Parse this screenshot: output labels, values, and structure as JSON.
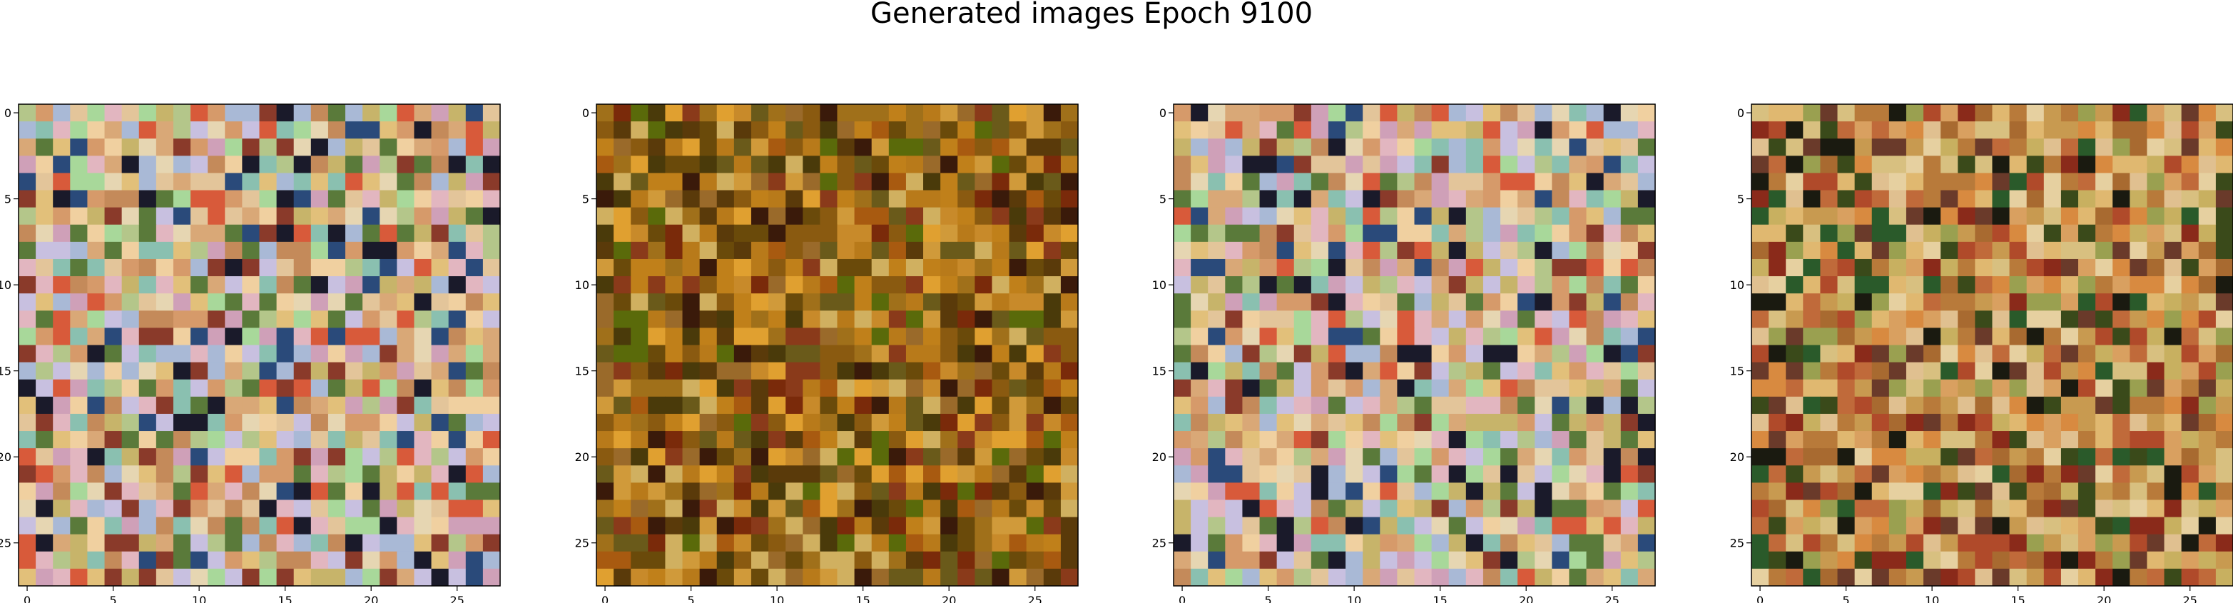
{
  "figure": {
    "title": "Generated images Epoch 9100"
  },
  "chart_data": [
    {
      "type": "heatmap",
      "grid_size": 28,
      "xticks": [
        0,
        5,
        10,
        15,
        20,
        25
      ],
      "yticks": [
        0,
        5,
        10,
        15,
        20,
        25
      ],
      "palette": [
        "#d9a877",
        "#e3c59a",
        "#c7b46a",
        "#e6d6b2",
        "#b4c68a",
        "#d69a6a",
        "#cfa0b8",
        "#a9b9d6",
        "#e2c07a",
        "#c48a5a",
        "#8a3a2a",
        "#2a4a7a",
        "#1a1a2a",
        "#5a7a3a",
        "#a8d89a",
        "#d85a3a",
        "#e2b6c0",
        "#c8c0e0",
        "#8ac0b0",
        "#f0d0a0"
      ],
      "seed": 11
    },
    {
      "type": "heatmap",
      "grid_size": 28,
      "xticks": [
        0,
        5,
        10,
        15,
        20,
        25
      ],
      "yticks": [
        0,
        5,
        10,
        15,
        20,
        25
      ],
      "palette": [
        "#b87a1a",
        "#8a5a10",
        "#6a4a0a",
        "#c88a2a",
        "#a0701a",
        "#5a3a0a",
        "#7a2a0a",
        "#d09a3a",
        "#9a6a2a",
        "#4a3a0a",
        "#5a6a0a",
        "#c0801a",
        "#e0a030",
        "#3a1a0a",
        "#8a3a1a",
        "#d0b060",
        "#6a5a1a",
        "#a85a10"
      ],
      "seed": 23
    },
    {
      "type": "heatmap",
      "grid_size": 28,
      "xticks": [
        0,
        5,
        10,
        15,
        20,
        25
      ],
      "yticks": [
        0,
        5,
        10,
        15,
        20,
        25
      ],
      "palette": [
        "#d9a877",
        "#e3c59a",
        "#c7b46a",
        "#e6d6b2",
        "#b4c68a",
        "#d69a6a",
        "#cfa0b8",
        "#a9b9d6",
        "#e2c07a",
        "#c48a5a",
        "#8a3a2a",
        "#2a4a7a",
        "#1a1a2a",
        "#5a7a3a",
        "#a8d89a",
        "#d85a3a",
        "#e2b6c0",
        "#c8c0e0",
        "#8ac0b0",
        "#f0d0a0"
      ],
      "seed": 37
    },
    {
      "type": "heatmap",
      "grid_size": 28,
      "xticks": [
        0,
        5,
        10,
        15,
        20,
        25
      ],
      "yticks": [
        0,
        5,
        10,
        15,
        20,
        25
      ],
      "palette": [
        "#d9a060",
        "#e0b870",
        "#c89a50",
        "#b87a3a",
        "#d8c080",
        "#a86a30",
        "#8a2a1a",
        "#3a4a1a",
        "#1a1a10",
        "#c06a3a",
        "#e0c090",
        "#9aa050",
        "#6a3a2a",
        "#d88a40",
        "#e6d0a0",
        "#b04a2a",
        "#2a5a2a",
        "#c8b060"
      ],
      "seed": 53
    }
  ]
}
